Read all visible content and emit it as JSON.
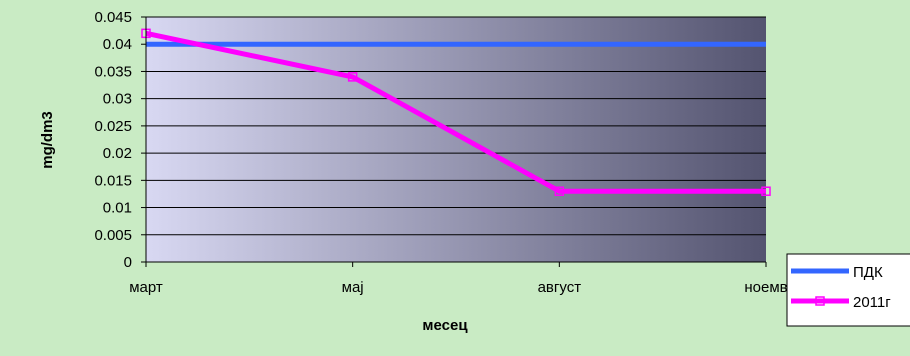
{
  "chart_data": {
    "type": "line",
    "categories": [
      "март",
      "мај",
      "август",
      "ноемв"
    ],
    "series": [
      {
        "name": "ПДК",
        "values": [
          0.04,
          0.04,
          0.04,
          0.04
        ],
        "color": "#3366ff"
      },
      {
        "name": "2011г",
        "values": [
          0.042,
          0.034,
          0.013,
          0.013
        ],
        "color": "#ff00ff",
        "marker": "square"
      }
    ],
    "title": "",
    "xlabel": "месец",
    "ylabel": "mg/dm3",
    "ylim": [
      0,
      0.045
    ],
    "yticks": [
      "0",
      "0.005",
      "0.01",
      "0.015",
      "0.02",
      "0.025",
      "0.03",
      "0.035",
      "0.04",
      "0.045"
    ],
    "grid": true,
    "legend_position": "bottom-right",
    "colors": {
      "background": "#c9ebc4",
      "plot_gradient_start": "#d8d8f2",
      "plot_gradient_end": "#545470",
      "gridline": "#000000"
    }
  }
}
